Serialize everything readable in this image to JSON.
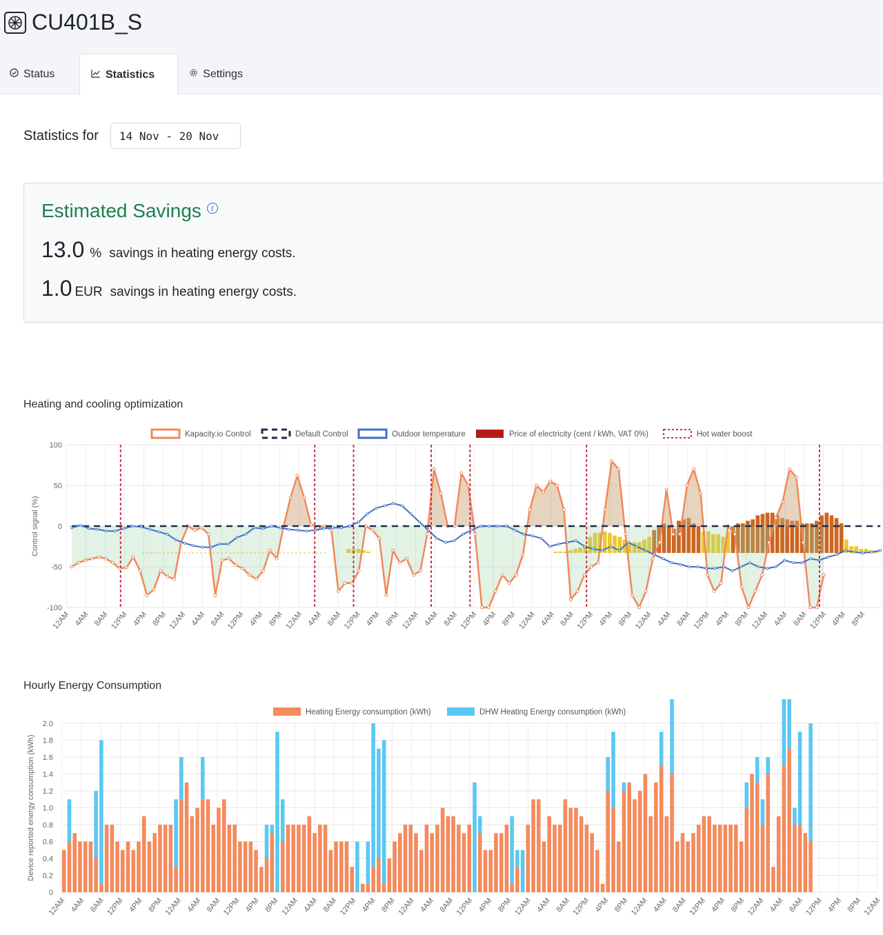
{
  "device": {
    "name": "CU401B_S",
    "icon": "fan-icon"
  },
  "tabs": [
    {
      "label": "Status",
      "icon": "check-circle-icon"
    },
    {
      "label": "Statistics",
      "icon": "chart-line-icon"
    },
    {
      "label": "Settings",
      "icon": "gear-icon"
    }
  ],
  "statistics": {
    "label": "Statistics for",
    "date_range": "14 Nov - 20 Nov"
  },
  "savings": {
    "title": "Estimated Savings",
    "percent_value": "13.0",
    "percent_unit": "%",
    "percent_text": "savings in heating energy costs.",
    "eur_value": "1.0",
    "eur_unit": "EUR",
    "eur_text": "savings in heating energy costs."
  },
  "colors": {
    "kapacity": "#f2875a",
    "default": "#1c2b4a",
    "outdoor": "#3d6fc7",
    "price_low": "#e8c21a",
    "price_high": "#c5570a",
    "boost": "#c8324a",
    "heating": "#f58a5c",
    "dhw": "#5ac8f2",
    "accent": "#1e7e4f"
  },
  "chart_data": [
    {
      "type": "line",
      "title": "Heating and cooling optimization",
      "ylabel": "Control signal (%)",
      "ylim": [
        -100,
        100
      ],
      "yticks": [
        "100",
        "50",
        "0",
        "-50",
        "-100"
      ],
      "legend_position": "top",
      "legend": [
        "Kapacity.io Control",
        "Default Control",
        "Outdoor temperature",
        "Price of electricity (cent / kWh, VAT 0%)",
        "Hot water boost"
      ],
      "x_tick_labels": [
        "12AM",
        "4AM",
        "8AM",
        "12PM",
        "4PM",
        "8PM",
        "12AM",
        "4AM",
        "8AM",
        "12PM",
        "4PM",
        "8PM",
        "12AM",
        "4AM",
        "8AM",
        "12PM",
        "4PM",
        "8PM",
        "12AM",
        "4AM",
        "8AM",
        "12PM",
        "4PM",
        "8PM",
        "12AM",
        "4AM",
        "8AM",
        "12PM",
        "4PM",
        "8PM",
        "12AM",
        "4AM",
        "8AM",
        "12PM",
        "4PM",
        "8PM",
        "12AM",
        "4AM",
        "8AM",
        "12PM",
        "4PM",
        "8PM"
      ],
      "kapacity_control": [
        -50,
        -45,
        -42,
        -40,
        -38,
        -40,
        -45,
        -52,
        -51,
        -38,
        -55,
        -85,
        -78,
        -55,
        -62,
        -65,
        -20,
        0,
        -5,
        -2,
        -10,
        -85,
        -42,
        -40,
        -48,
        -52,
        -60,
        -65,
        -55,
        -30,
        -40,
        0,
        35,
        62,
        35,
        2,
        -2,
        0,
        -5,
        -80,
        -70,
        -70,
        -55,
        0,
        -5,
        -15,
        -85,
        -30,
        -45,
        -40,
        -60,
        -55,
        -10,
        70,
        40,
        0,
        0,
        65,
        50,
        -10,
        -100,
        -100,
        -80,
        -60,
        -70,
        -60,
        -35,
        20,
        50,
        42,
        55,
        50,
        20,
        -90,
        -80,
        -60,
        -50,
        -45,
        20,
        80,
        70,
        -10,
        -85,
        -100,
        -80,
        -40,
        -20,
        45,
        -10,
        -10,
        50,
        70,
        40,
        -60,
        -80,
        -70,
        0,
        -10,
        -75,
        -100,
        -80,
        -60,
        -20,
        10,
        30,
        70,
        60,
        -20,
        -100,
        -100,
        -60
      ],
      "default_control": 0,
      "outdoor_temperature": [
        -2,
        1,
        -3,
        -4,
        -6,
        -6,
        -3,
        0,
        -1,
        -4,
        -7,
        -10,
        -17,
        -21,
        -24,
        -26,
        -26,
        -22,
        -22,
        -14,
        -10,
        -2,
        -3,
        0,
        -2,
        -4,
        -5,
        -6,
        -5,
        -3,
        -2,
        -2,
        0,
        5,
        15,
        22,
        25,
        28,
        25,
        15,
        5,
        -5,
        -15,
        -20,
        -18,
        -10,
        -5,
        0,
        0,
        0,
        0,
        -5,
        -10,
        -12,
        -15,
        -25,
        -22,
        -20,
        -18,
        -25,
        -28,
        -30,
        -25,
        -30,
        -20,
        -25,
        -30,
        -35,
        -40,
        -45,
        -47,
        -50,
        -50,
        -52,
        -52,
        -50,
        -55,
        -50,
        -45,
        -50,
        -52,
        -50,
        -42,
        -45,
        -45,
        -40,
        -42,
        -38,
        -35,
        -30,
        -32,
        -33,
        -32,
        -30
      ],
      "price_of_electricity": [
        0,
        0,
        0,
        0,
        0,
        0,
        0,
        0,
        0,
        0,
        0,
        0,
        0,
        0,
        0,
        0,
        0,
        0,
        0,
        0,
        0,
        0,
        0,
        0,
        3,
        3,
        3,
        2,
        1,
        0,
        0,
        0,
        0,
        0,
        0,
        0,
        0,
        0,
        0,
        0,
        0,
        0,
        0,
        0,
        0,
        0,
        0,
        0,
        0,
        0,
        0,
        0,
        0,
        0,
        0,
        0,
        0,
        0,
        0,
        0,
        0,
        0,
        0,
        0,
        0,
        0,
        1,
        1,
        1,
        2,
        3,
        4,
        6,
        12,
        15,
        15,
        16,
        15,
        13,
        12,
        10,
        8,
        8,
        8,
        10,
        12,
        17,
        20,
        22,
        20,
        18,
        24,
        25,
        26,
        22,
        20,
        16,
        16,
        14,
        14,
        12,
        16,
        20,
        22,
        22,
        24,
        25,
        28,
        29,
        30,
        30,
        28,
        26,
        25,
        24,
        24,
        22,
        22,
        22,
        24,
        28,
        30,
        28,
        26,
        22,
        10,
        5,
        5,
        3,
        3,
        2,
        1
      ]
    },
    {
      "type": "bar",
      "title": "Hourly Energy Consumption",
      "ylabel": "Device reported energy consumption (kWh)",
      "ylim": [
        0,
        2.0
      ],
      "yticks": [
        "2.0",
        "1.8",
        "1.6",
        "1.4",
        "1.2",
        "1.0",
        "0.8",
        "0.6",
        "0.4",
        "0.2",
        "0"
      ],
      "legend_position": "top",
      "series": [
        {
          "name": "Heating Energy consumption (kWh)",
          "values": [
            0.5,
            0.6,
            0.7,
            0.6,
            0.6,
            0.6,
            0.4,
            0.1,
            0.8,
            0.8,
            0.6,
            0.5,
            0.6,
            0.5,
            0.6,
            0.9,
            0.6,
            0.7,
            0.8,
            0.8,
            0.8,
            0.3,
            1.1,
            1.3,
            0.9,
            1.0,
            1.1,
            1.1,
            0.8,
            1.0,
            1.1,
            0.8,
            0.8,
            0.6,
            0.6,
            0.6,
            0.5,
            0.3,
            0.4,
            0.7,
            0.0,
            0.6,
            0.8,
            0.8,
            0.8,
            0.8,
            0.9,
            0.7,
            0.8,
            0.8,
            0.5,
            0.6,
            0.6,
            0.6,
            0.3,
            0.0,
            0.1,
            0.1,
            0.3,
            0.4,
            0.1,
            0.4,
            0.6,
            0.7,
            0.8,
            0.8,
            0.7,
            0.5,
            0.8,
            0.7,
            0.8,
            1.0,
            0.9,
            0.9,
            0.8,
            0.7,
            0.8,
            0.0,
            0.7,
            0.5,
            0.5,
            0.7,
            0.7,
            0.8,
            0.1,
            0.3,
            0.0,
            0.8,
            1.1,
            1.1,
            0.6,
            0.9,
            0.8,
            0.8,
            1.1,
            1.0,
            1.0,
            0.9,
            0.8,
            0.7,
            0.5,
            0.1,
            1.2,
            1.0,
            0.6,
            1.2,
            1.3,
            1.1,
            1.2,
            1.4,
            0.9,
            1.3,
            1.5,
            0.9,
            1.4,
            0.6,
            0.7,
            0.6,
            0.7,
            0.8,
            0.9,
            0.9,
            0.8,
            0.8,
            0.8,
            0.8,
            0.8,
            0.6,
            1.0,
            1.4,
            1.3,
            0.8,
            1.4,
            0.3,
            0.9,
            1.5,
            1.7,
            0.8,
            0.8,
            0.7,
            0.6
          ]
        },
        {
          "name": "DHW Heating Energy consumption (kWh)",
          "values": [
            0,
            0.5,
            0,
            0,
            0,
            0,
            0.8,
            1.7,
            0,
            0,
            0,
            0,
            0,
            0,
            0,
            0,
            0,
            0,
            0,
            0,
            0,
            0.8,
            0.5,
            0,
            0,
            0,
            0.5,
            0,
            0,
            0,
            0,
            0,
            0,
            0,
            0,
            0,
            0,
            0,
            0.4,
            0.1,
            1.9,
            0.5,
            0,
            0,
            0,
            0,
            0,
            0,
            0,
            0,
            0,
            0,
            0,
            0,
            0,
            0.6,
            0,
            0.5,
            1.7,
            1.3,
            1.7,
            0,
            0,
            0,
            0,
            0,
            0,
            0,
            0,
            0,
            0,
            0,
            0,
            0,
            0,
            0,
            0,
            1.3,
            0.2,
            0,
            0,
            0,
            0,
            0,
            0.8,
            0.2,
            0.5,
            0,
            0,
            0,
            0,
            0,
            0,
            0,
            0,
            0,
            0,
            0,
            0,
            0,
            0,
            0,
            0.4,
            0.9,
            0,
            0.1,
            0,
            0,
            0,
            0,
            0,
            0,
            0.4,
            0,
            1.9,
            0,
            0,
            0,
            0,
            0,
            0,
            0,
            0,
            0,
            0,
            0,
            0,
            0,
            0.3,
            0,
            0.3,
            0.3,
            0.2,
            0,
            0,
            1.3,
            1.0,
            0.2,
            1.1,
            0,
            1.4,
            0,
            0,
            0,
            0
          ]
        }
      ],
      "x_tick_labels": [
        "12AM",
        "4AM",
        "8AM",
        "12PM",
        "4PM",
        "8PM",
        "12AM",
        "4AM",
        "8AM",
        "12PM",
        "4PM",
        "8PM",
        "12AM",
        "4AM",
        "8AM",
        "12PM",
        "4PM",
        "8PM",
        "12AM",
        "4AM",
        "8AM",
        "12PM",
        "4PM",
        "8PM",
        "12AM",
        "4AM",
        "8AM",
        "12PM",
        "4PM",
        "8PM",
        "12AM",
        "4AM",
        "8AM",
        "12PM",
        "4PM",
        "8PM",
        "12AM",
        "4AM",
        "8AM",
        "12PM",
        "4PM",
        "8PM",
        "12AM"
      ]
    }
  ]
}
